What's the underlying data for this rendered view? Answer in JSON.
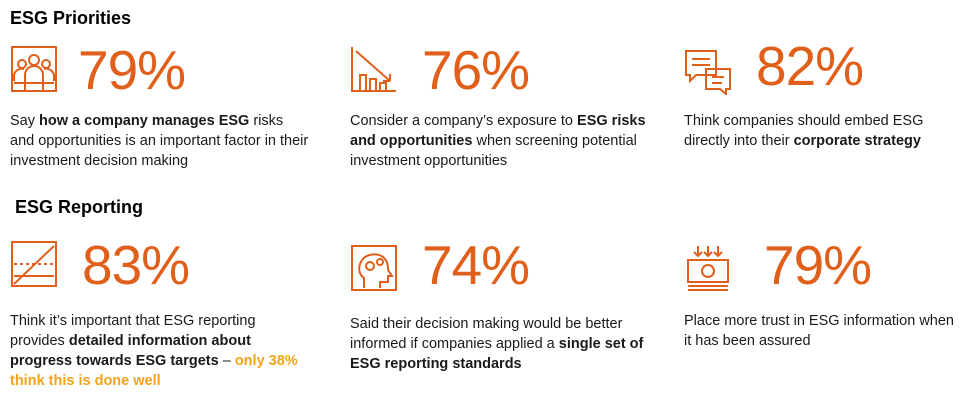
{
  "colors": {
    "accent": "#e0601b",
    "highlight": "#f2a21b",
    "text": "#1a1a1a"
  },
  "priorities": {
    "title": "ESG Priorities",
    "stats": [
      {
        "icon": "people-group-icon",
        "percent": "79%",
        "desc": [
          {
            "t": "Say "
          },
          {
            "t": "how a company manages ESG",
            "b": true
          },
          {
            "t": " risks and opportunities is an important factor in their investment decision making"
          }
        ]
      },
      {
        "icon": "declining-chart-icon",
        "percent": "76%",
        "desc": [
          {
            "t": "Consider a company’s exposure to "
          },
          {
            "t": "ESG risks and opportunities",
            "b": true
          },
          {
            "t": " when screening potential investment opportunities"
          }
        ]
      },
      {
        "icon": "chat-bubbles-icon",
        "percent": "82%",
        "desc": [
          {
            "t": "Think companies should embed ESG directly into their "
          },
          {
            "t": "corporate strategy",
            "b": true
          }
        ]
      }
    ]
  },
  "reporting": {
    "title": "ESG Reporting",
    "stats": [
      {
        "icon": "progress-chart-icon",
        "percent": "83%",
        "desc": [
          {
            "t": "Think it’s important that ESG reporting provides "
          },
          {
            "t": "detailed information about progress towards ESG targets",
            "b": true
          },
          {
            "t": " – "
          },
          {
            "t": "only 38% think this is done well",
            "hl": true
          }
        ]
      },
      {
        "icon": "head-gears-icon",
        "percent": "74%",
        "desc": [
          {
            "t": "Said their decision making would be better informed if companies applied a "
          },
          {
            "t": "single set of ESG reporting standards",
            "b": true
          }
        ]
      },
      {
        "icon": "money-trust-icon",
        "percent": "79%",
        "desc": [
          {
            "t": "Place more trust in ESG information when it has been assured"
          }
        ]
      }
    ]
  }
}
